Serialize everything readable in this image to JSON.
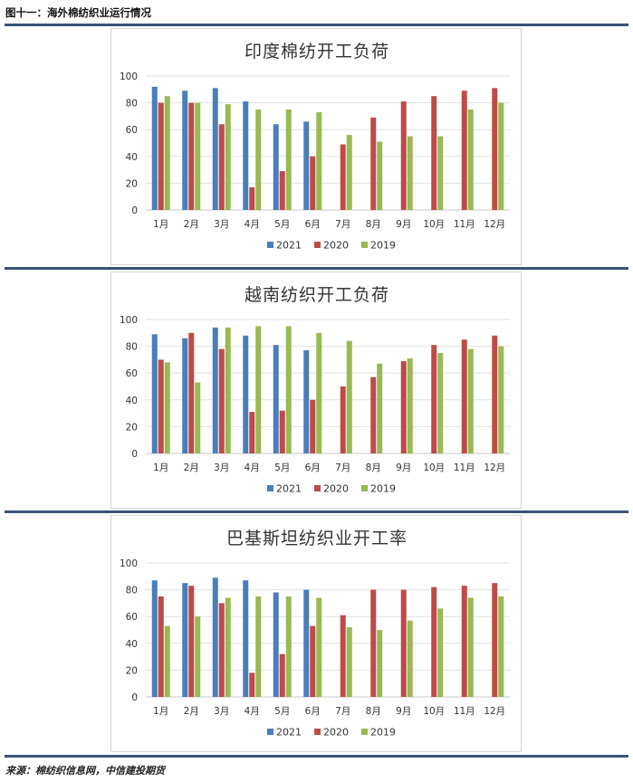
{
  "header": {
    "figure_title": "图十一：海外棉纺织业运行情况"
  },
  "source": "来源：棉纺织信息网，中信建投期货",
  "colors": {
    "s2021": "#4a7ebb",
    "s2020": "#be4b48",
    "s2019": "#98b954",
    "rule": "#3b5477"
  },
  "chart_data": [
    {
      "type": "bar",
      "title": "印度棉纺开工负荷",
      "categories": [
        "1月",
        "2月",
        "3月",
        "4月",
        "5月",
        "6月",
        "7月",
        "8月",
        "9月",
        "10月",
        "11月",
        "12月"
      ],
      "ylim": [
        0,
        100
      ],
      "yticks": [
        0,
        20,
        40,
        60,
        80,
        100
      ],
      "grid": true,
      "legend": "bottom",
      "series": [
        {
          "name": "2021",
          "values": [
            92,
            89,
            91,
            81,
            64,
            66,
            null,
            null,
            null,
            null,
            null,
            null
          ]
        },
        {
          "name": "2020",
          "values": [
            80,
            80,
            64,
            17,
            29,
            40,
            49,
            69,
            81,
            85,
            89,
            91
          ]
        },
        {
          "name": "2019",
          "values": [
            85,
            80,
            79,
            75,
            75,
            73,
            56,
            51,
            55,
            55,
            75,
            80
          ]
        }
      ]
    },
    {
      "type": "bar",
      "title": "越南纺织开工负荷",
      "categories": [
        "1月",
        "2月",
        "3月",
        "4月",
        "5月",
        "6月",
        "7月",
        "8月",
        "9月",
        "10月",
        "11月",
        "12月"
      ],
      "ylim": [
        0,
        100
      ],
      "yticks": [
        0,
        20,
        40,
        60,
        80,
        100
      ],
      "grid": true,
      "legend": "bottom",
      "series": [
        {
          "name": "2021",
          "values": [
            89,
            86,
            94,
            88,
            81,
            77,
            null,
            null,
            null,
            null,
            null,
            null
          ]
        },
        {
          "name": "2020",
          "values": [
            70,
            90,
            78,
            31,
            32,
            40,
            50,
            57,
            69,
            81,
            85,
            88
          ]
        },
        {
          "name": "2019",
          "values": [
            68,
            53,
            94,
            95,
            95,
            90,
            84,
            67,
            71,
            75,
            78,
            80
          ]
        }
      ]
    },
    {
      "type": "bar",
      "title": "巴基斯坦纺织业开工率",
      "categories": [
        "1月",
        "2月",
        "3月",
        "4月",
        "5月",
        "6月",
        "7月",
        "8月",
        "9月",
        "10月",
        "11月",
        "12月"
      ],
      "ylim": [
        0,
        100
      ],
      "yticks": [
        0,
        20,
        40,
        60,
        80,
        100
      ],
      "grid": true,
      "legend": "bottom",
      "series": [
        {
          "name": "2021",
          "values": [
            87,
            85,
            89,
            87,
            78,
            80,
            null,
            null,
            null,
            null,
            null,
            null
          ]
        },
        {
          "name": "2020",
          "values": [
            75,
            83,
            70,
            18,
            32,
            53,
            61,
            80,
            80,
            82,
            83,
            85
          ]
        },
        {
          "name": "2019",
          "values": [
            53,
            60,
            74,
            75,
            75,
            74,
            52,
            50,
            57,
            66,
            74,
            75
          ]
        }
      ]
    }
  ]
}
